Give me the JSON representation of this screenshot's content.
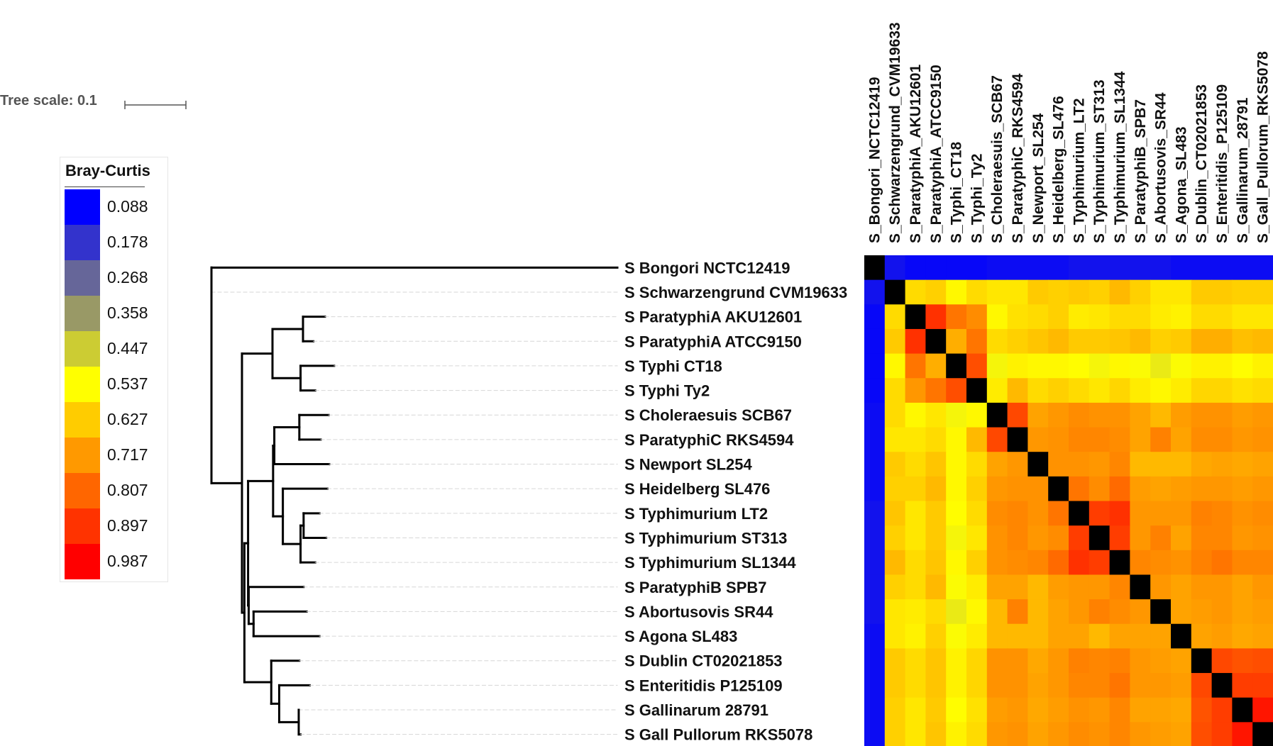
{
  "tree_scale": {
    "label": "Tree scale: 0.1"
  },
  "legend": {
    "title": "Bray-Curtis",
    "items": [
      {
        "value": "0.088",
        "color": "#0000ff"
      },
      {
        "value": "0.178",
        "color": "#3333cc"
      },
      {
        "value": "0.268",
        "color": "#666699"
      },
      {
        "value": "0.358",
        "color": "#999966"
      },
      {
        "value": "0.447",
        "color": "#cccc33"
      },
      {
        "value": "0.537",
        "color": "#ffff00"
      },
      {
        "value": "0.627",
        "color": "#ffcc00"
      },
      {
        "value": "0.717",
        "color": "#ff9900"
      },
      {
        "value": "0.807",
        "color": "#ff6600"
      },
      {
        "value": "0.897",
        "color": "#ff3300"
      },
      {
        "value": "0.987",
        "color": "#ff0000"
      }
    ]
  },
  "chart_data": {
    "type": "heatmap",
    "diagonal_color": "#000000",
    "row_labels": [
      "S Bongori NCTC12419",
      "S Schwarzengrund CVM19633",
      "S ParatyphiA AKU12601",
      "S ParatyphiA ATCC9150",
      "S Typhi CT18",
      "S Typhi Ty2",
      "S Choleraesuis SCB67",
      "S ParatyphiC RKS4594",
      "S Newport SL254",
      "S Heidelberg SL476",
      "S Typhimurium LT2",
      "S Typhimurium ST313",
      "S Typhimurium SL1344",
      "S ParatyphiB SPB7",
      "S Abortusovis SR44",
      "S Agona SL483",
      "S Dublin CT02021853",
      "S Enteritidis P125109",
      "S Gallinarum 28791",
      "S Gall Pullorum RKS5078"
    ],
    "column_labels": [
      "S_Bongori_NCTC12419",
      "S_Schwarzengrund_CVM19633",
      "S_ParatyphiA_AKU12601",
      "S_ParatyphiA_ATCC9150",
      "S_Typhi_CT18",
      "S_Typhi_Ty2",
      "S_Choleraesuis_SCB67",
      "S_ParatyphiC_RKS4594",
      "S_Newport_SL254",
      "S_Heidelberg_SL476",
      "S_Typhimurium_LT2",
      "S_Typhimurium_ST313",
      "S_Typhimurium_SL1344",
      "S_ParatyphiB_SPB7",
      "S_Abortusovis_SR44",
      "S_Agona_SL483",
      "S_Dublin_CT02021853",
      "S_Enteritidis_P125109",
      "S_Gallinarum_28791",
      "S_Gall_Pullorum_RKS5078"
    ],
    "color_scale": {
      "stops": [
        0.088,
        0.178,
        0.268,
        0.358,
        0.447,
        0.537,
        0.627,
        0.717,
        0.807,
        0.897,
        0.987
      ],
      "colors": [
        "#0000ff",
        "#3333cc",
        "#666699",
        "#999966",
        "#cccc33",
        "#ffff00",
        "#ffcc00",
        "#ff9900",
        "#ff6600",
        "#ff3300",
        "#ff0000"
      ]
    },
    "values": [
      [
        null,
        0.12,
        0.1,
        0.1,
        0.1,
        0.1,
        0.11,
        0.11,
        0.11,
        0.11,
        0.12,
        0.12,
        0.12,
        0.12,
        0.12,
        0.11,
        0.11,
        0.11,
        0.11,
        0.11
      ],
      [
        0.12,
        null,
        0.6,
        0.62,
        0.55,
        0.6,
        0.58,
        0.58,
        0.63,
        0.62,
        0.63,
        0.62,
        0.66,
        0.62,
        0.58,
        0.58,
        0.63,
        0.63,
        0.62,
        0.62
      ],
      [
        0.1,
        0.6,
        null,
        0.9,
        0.78,
        0.74,
        0.55,
        0.59,
        0.6,
        0.62,
        0.57,
        0.58,
        0.6,
        0.6,
        0.57,
        0.56,
        0.6,
        0.6,
        0.58,
        0.58
      ],
      [
        0.1,
        0.63,
        0.9,
        null,
        0.68,
        0.78,
        0.6,
        0.62,
        0.64,
        0.66,
        0.63,
        0.63,
        0.64,
        0.66,
        0.62,
        0.63,
        0.68,
        0.68,
        0.65,
        0.66
      ],
      [
        0.1,
        0.55,
        0.78,
        0.68,
        null,
        0.85,
        0.52,
        0.56,
        0.55,
        0.55,
        0.54,
        0.52,
        0.55,
        0.53,
        0.5,
        0.53,
        0.56,
        0.56,
        0.54,
        0.56
      ],
      [
        0.1,
        0.6,
        0.72,
        0.78,
        0.85,
        null,
        0.57,
        0.66,
        0.6,
        0.62,
        0.6,
        0.58,
        0.61,
        0.57,
        0.55,
        0.57,
        0.61,
        0.61,
        0.59,
        0.6
      ],
      [
        0.11,
        0.6,
        0.55,
        0.58,
        0.52,
        0.55,
        null,
        0.86,
        0.7,
        0.72,
        0.74,
        0.73,
        0.73,
        0.7,
        0.66,
        0.71,
        0.73,
        0.73,
        0.71,
        0.72
      ],
      [
        0.11,
        0.58,
        0.58,
        0.6,
        0.55,
        0.66,
        0.86,
        null,
        0.72,
        0.73,
        0.75,
        0.75,
        0.74,
        0.7,
        0.76,
        0.7,
        0.74,
        0.74,
        0.72,
        0.73
      ],
      [
        0.11,
        0.63,
        0.6,
        0.64,
        0.55,
        0.6,
        0.7,
        0.72,
        null,
        0.73,
        0.73,
        0.72,
        0.75,
        0.66,
        0.66,
        0.66,
        0.69,
        0.7,
        0.69,
        0.7
      ],
      [
        0.11,
        0.62,
        0.62,
        0.66,
        0.55,
        0.62,
        0.72,
        0.73,
        0.73,
        null,
        0.78,
        0.74,
        0.8,
        0.71,
        0.7,
        0.71,
        0.72,
        0.72,
        0.71,
        0.72
      ],
      [
        0.12,
        0.64,
        0.58,
        0.63,
        0.54,
        0.6,
        0.74,
        0.75,
        0.73,
        0.78,
        null,
        0.88,
        0.9,
        0.72,
        0.72,
        0.72,
        0.76,
        0.75,
        0.73,
        0.74
      ],
      [
        0.12,
        0.62,
        0.58,
        0.63,
        0.52,
        0.58,
        0.73,
        0.75,
        0.72,
        0.74,
        0.88,
        null,
        0.88,
        0.72,
        0.76,
        0.7,
        0.75,
        0.75,
        0.72,
        0.73
      ],
      [
        0.12,
        0.66,
        0.6,
        0.64,
        0.55,
        0.62,
        0.73,
        0.74,
        0.75,
        0.8,
        0.9,
        0.88,
        null,
        0.75,
        0.74,
        0.73,
        0.76,
        0.78,
        0.75,
        0.75
      ],
      [
        0.12,
        0.62,
        0.6,
        0.66,
        0.53,
        0.57,
        0.7,
        0.7,
        0.66,
        0.71,
        0.72,
        0.72,
        0.75,
        null,
        0.72,
        0.7,
        0.72,
        0.72,
        0.7,
        0.72
      ],
      [
        0.12,
        0.58,
        0.57,
        0.6,
        0.5,
        0.55,
        0.66,
        0.76,
        0.66,
        0.7,
        0.72,
        0.76,
        0.74,
        0.72,
        null,
        0.7,
        0.71,
        0.72,
        0.7,
        0.71
      ],
      [
        0.11,
        0.58,
        0.56,
        0.62,
        0.53,
        0.57,
        0.66,
        0.66,
        0.66,
        0.7,
        0.7,
        0.66,
        0.7,
        0.7,
        0.7,
        null,
        0.7,
        0.71,
        0.69,
        0.7
      ],
      [
        0.11,
        0.63,
        0.6,
        0.64,
        0.56,
        0.61,
        0.73,
        0.73,
        0.69,
        0.72,
        0.76,
        0.75,
        0.76,
        0.72,
        0.71,
        0.7,
        null,
        0.86,
        0.84,
        0.85
      ],
      [
        0.11,
        0.63,
        0.6,
        0.64,
        0.56,
        0.61,
        0.73,
        0.73,
        0.7,
        0.72,
        0.75,
        0.75,
        0.78,
        0.72,
        0.72,
        0.71,
        0.86,
        null,
        0.88,
        0.88
      ],
      [
        0.11,
        0.62,
        0.58,
        0.63,
        0.54,
        0.59,
        0.71,
        0.72,
        0.69,
        0.71,
        0.73,
        0.72,
        0.75,
        0.7,
        0.7,
        0.69,
        0.84,
        0.88,
        null,
        0.95
      ],
      [
        0.11,
        0.62,
        0.58,
        0.64,
        0.56,
        0.6,
        0.72,
        0.73,
        0.7,
        0.72,
        0.74,
        0.73,
        0.75,
        0.72,
        0.71,
        0.7,
        0.85,
        0.88,
        0.95,
        null
      ]
    ],
    "tree": {
      "c": [
        {
          "l": 0.0,
          "leaf": 0
        },
        {
          "l": 0.0,
          "c": [
            {
              "l": 0.0,
              "leaf": 1
            },
            {
              "l": 0.05,
              "c": [
                {
                  "l": 0.05,
                  "c": [
                    {
                      "l": 0.05,
                      "c": [
                        {
                          "l": 0.036,
                          "leaf": 2
                        },
                        {
                          "l": 0.017,
                          "leaf": 3
                        }
                      ]
                    },
                    {
                      "l": 0.046,
                      "c": [
                        {
                          "l": 0.055,
                          "leaf": 4
                        },
                        {
                          "l": 0.024,
                          "leaf": 5
                        }
                      ]
                    }
                  ]
                },
                {
                  "l": 0.004,
                  "c": [
                    {
                      "l": 0.001,
                      "c": [
                        {
                          "l": 0.005,
                          "c": [
                            {
                              "l": 0.041,
                              "c": [
                                {
                                  "l": 0.002,
                                  "c": [
                                    {
                                      "l": 0.041,
                                      "c": [
                                        {
                                          "l": 0.048,
                                          "leaf": 6
                                        },
                                        {
                                          "l": 0.035,
                                          "leaf": 7
                                        }
                                      ]
                                    },
                                    {
                                      "l": 0.09,
                                      "leaf": 8
                                    }
                                  ]
                                },
                                {
                                  "l": 0.016,
                                  "c": [
                                    {
                                      "l": 0.073,
                                      "leaf": 9
                                    },
                                    {
                                      "l": 0.029,
                                      "c": [
                                        {
                                          "l": 0.005,
                                          "c": [
                                            {
                                              "l": 0.026,
                                              "leaf": 10
                                            },
                                            {
                                              "l": 0.037,
                                              "leaf": 11
                                            }
                                          ]
                                        },
                                        {
                                          "l": 0.024,
                                          "leaf": 12
                                        }
                                      ]
                                    }
                                  ]
                                }
                              ]
                            },
                            {
                              "l": 0.001,
                              "c": [
                                {
                                  "l": 0.09,
                                  "leaf": 13
                                },
                                {
                                  "l": 0.008,
                                  "c": [
                                    {
                                      "l": 0.087,
                                      "leaf": 14
                                    },
                                    {
                                      "l": 0.108,
                                      "leaf": 15
                                    }
                                  ]
                                }
                              ]
                            }
                          ]
                        }
                      ]
                    },
                    {
                      "l": 0.001,
                      "c": [
                        {
                          "l": 0.043,
                          "c": [
                            {
                              "l": 0.046,
                              "leaf": 16
                            },
                            {
                              "l": 0.013,
                              "c": [
                                {
                                  "l": 0.032,
                                  "c": [
                                    {
                                      "l": 0.0,
                                      "leaf": 18
                                    },
                                    {
                                      "l": 0.003,
                                      "leaf": 19
                                    }
                                  ]
                                },
                                {
                                  "l": 0.05,
                                  "leaf": 17
                                }
                              ]
                            }
                          ]
                        }
                      ]
                    }
                  ]
                }
              ]
            }
          ]
        }
      ]
    }
  }
}
